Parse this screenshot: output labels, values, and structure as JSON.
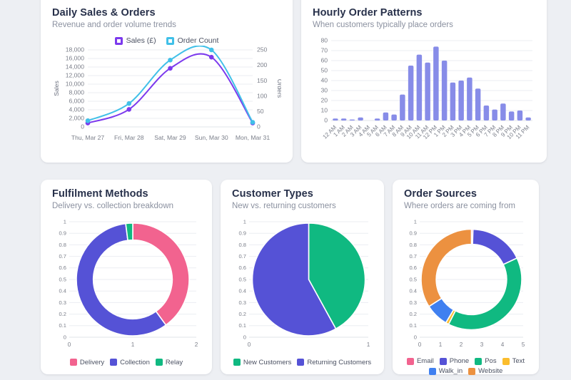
{
  "cards": {
    "daily_sales": {
      "title": "Daily Sales & Orders",
      "subtitle": "Revenue and order volume trends"
    },
    "hourly": {
      "title": "Hourly Order Patterns",
      "subtitle": "When customers typically place orders"
    },
    "fulfilment": {
      "title": "Fulfilment Methods",
      "subtitle": "Delivery vs. collection breakdown"
    },
    "customers": {
      "title": "Customer Types",
      "subtitle": "New vs. returning customers"
    },
    "sources": {
      "title": "Order Sources",
      "subtitle": "Where orders are coming from"
    }
  },
  "chart_data": [
    {
      "id": "daily",
      "type": "line",
      "title": "Daily Sales & Orders",
      "x": [
        "Thu, Mar 27",
        "Fri, Mar 28",
        "Sat, Mar 29",
        "Sun, Mar 30",
        "Mon, Mar 31"
      ],
      "series": [
        {
          "name": "Sales (£)",
          "axis": "left",
          "color": "#7c3aed",
          "values": [
            900,
            4100,
            13700,
            16300,
            900
          ]
        },
        {
          "name": "Order Count",
          "axis": "right",
          "color": "#41c0e8",
          "values": [
            20,
            76,
            217,
            250,
            15
          ]
        }
      ],
      "left_axis": {
        "label": "Sales",
        "min": 0,
        "max": 18000,
        "step": 2000
      },
      "right_axis": {
        "label": "Orders",
        "min": 0,
        "max": 250,
        "step": 50
      },
      "legend_position": "top",
      "grid": true
    },
    {
      "id": "hourly",
      "type": "bar",
      "title": "Hourly Order Patterns",
      "categories": [
        "12 AM",
        "1 AM",
        "2 AM",
        "3 AM",
        "4 AM",
        "5 AM",
        "6 AM",
        "7 AM",
        "8 AM",
        "9 AM",
        "10 AM",
        "11 AM",
        "12 PM",
        "1 PM",
        "2 PM",
        "3 PM",
        "4 PM",
        "5 PM",
        "6 PM",
        "7 PM",
        "8 PM",
        "9 PM",
        "10 PM",
        "11 PM"
      ],
      "values": [
        2,
        2,
        1,
        3,
        0,
        2,
        8,
        6,
        26,
        55,
        66,
        58,
        74,
        60,
        38,
        40,
        43,
        32,
        15,
        11,
        17,
        9,
        10,
        3
      ],
      "color": "#878ce8",
      "ylim": [
        0,
        80
      ],
      "step": 10,
      "grid": true
    },
    {
      "id": "fulfilment",
      "type": "doughnut",
      "title": "Fulfilment Methods",
      "labels": [
        "Delivery",
        "Collection",
        "Relay"
      ],
      "values": [
        40,
        58,
        2
      ],
      "colors": [
        "#f2638f",
        "#5552d6",
        "#10b981"
      ],
      "x_ticks": [
        "0",
        "1",
        "2"
      ],
      "y_axis": {
        "min": 0,
        "max": 1,
        "step": 0.1
      },
      "legend_position": "bottom"
    },
    {
      "id": "customers",
      "type": "pie",
      "title": "Customer Types",
      "labels": [
        "New Customers",
        "Returning Customers"
      ],
      "values": [
        42,
        58
      ],
      "colors": [
        "#10b981",
        "#5552d6"
      ],
      "x_ticks": [
        "0",
        "1"
      ],
      "y_axis": {
        "min": 0,
        "max": 1,
        "step": 0.1
      },
      "legend_position": "bottom"
    },
    {
      "id": "sources",
      "type": "doughnut",
      "title": "Order Sources",
      "labels": [
        "Email",
        "Phone",
        "Pos",
        "Text",
        "Walk_in",
        "Website"
      ],
      "values": [
        0.5,
        17.5,
        39.5,
        1,
        7.5,
        34
      ],
      "colors": [
        "#f2638f",
        "#5552d6",
        "#10b981",
        "#fbbd2d",
        "#4080f0",
        "#ec9140"
      ],
      "x_ticks": [
        "0",
        "1",
        "2",
        "3",
        "4",
        "5"
      ],
      "y_axis": {
        "min": 0,
        "max": 1,
        "step": 0.1
      },
      "legend_position": "bottom"
    }
  ],
  "theme": {
    "page_bg": "#edeff3",
    "card_bg": "#ffffff",
    "title_color": "#27304a",
    "subtitle_color": "#8b91a0",
    "tick_color": "#7b7f8a",
    "grid_color": "#ebedf2"
  }
}
